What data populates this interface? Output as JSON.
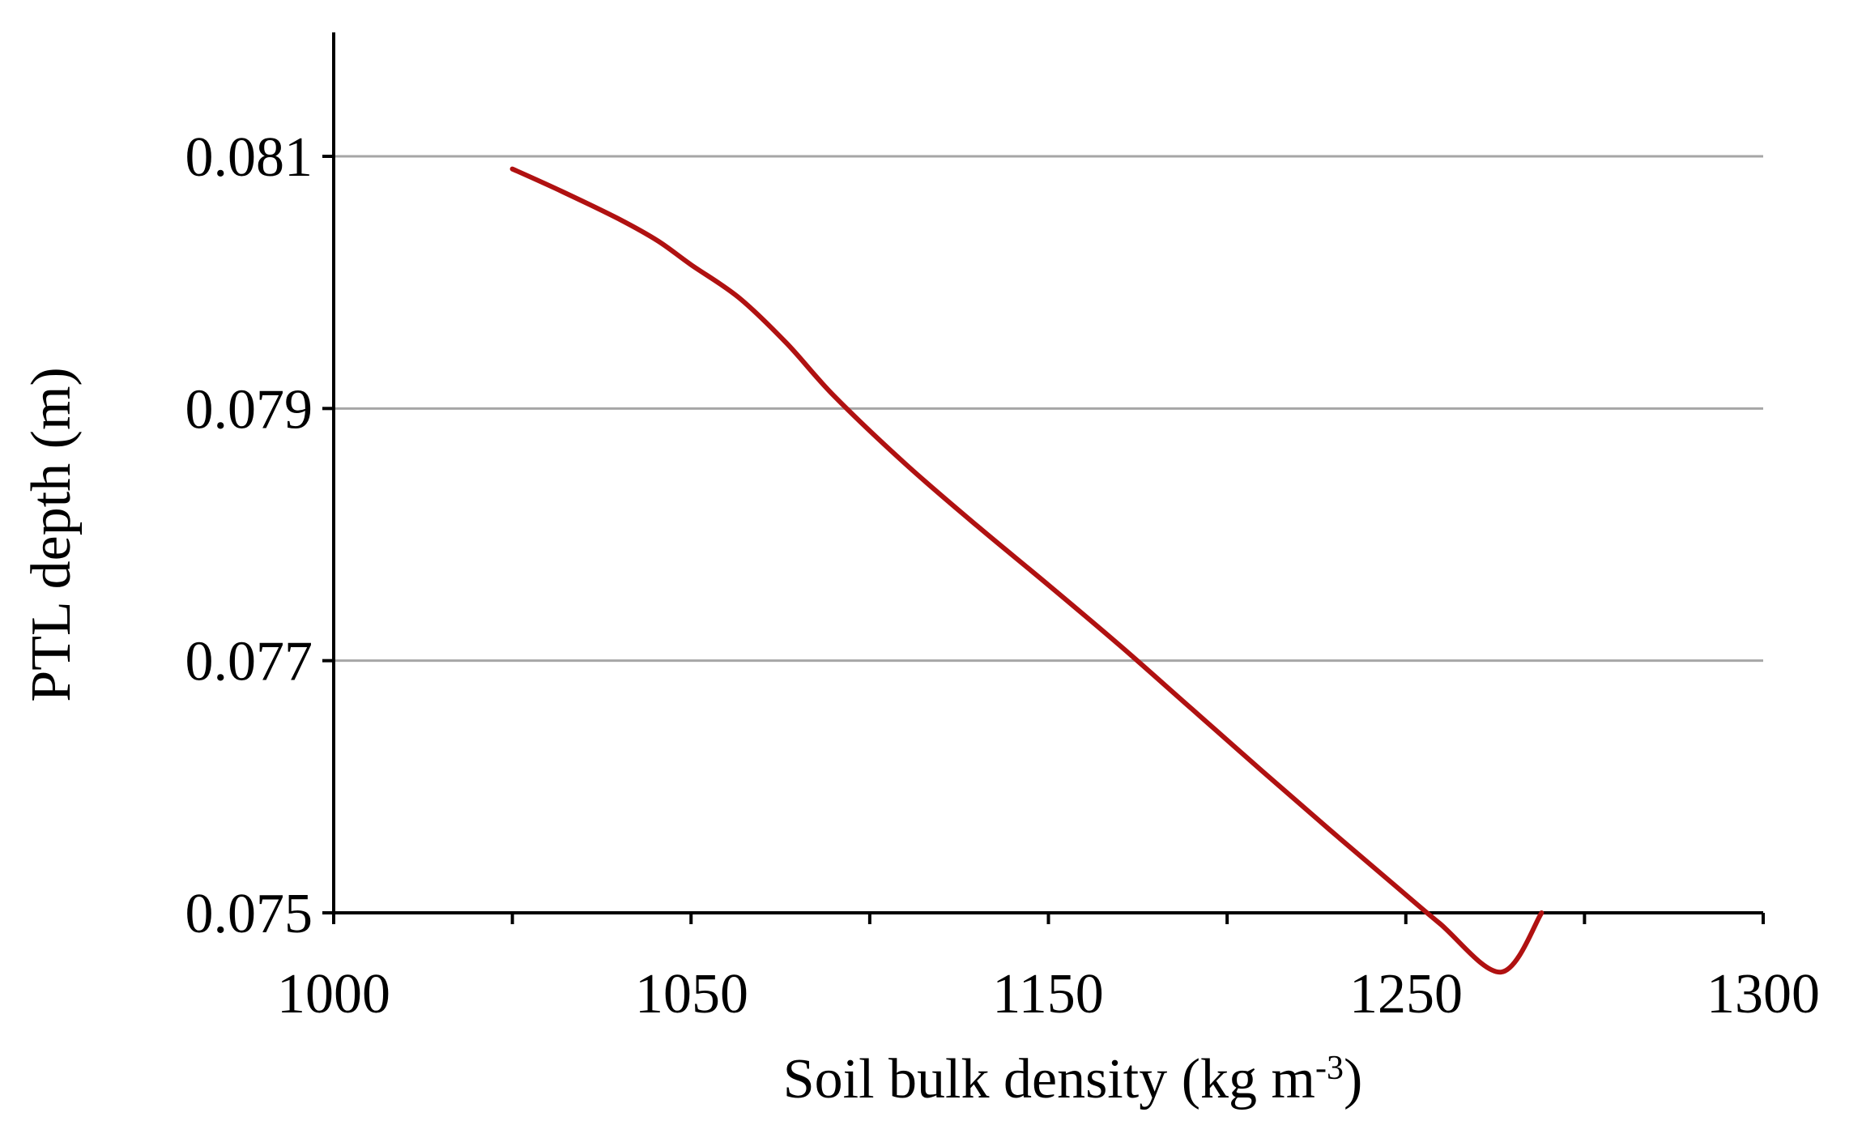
{
  "chart_data": {
    "type": "line",
    "title": "",
    "xlabel": "Soil bulk density (kg m",
    "xlabel_sup": "-3",
    "xlabel_end": ")",
    "ylabel": "PTL depth (m)",
    "xlim": [
      1000,
      1300
    ],
    "ylim": [
      0.075,
      0.082
    ],
    "x_tick_values": [
      1000,
      1050,
      1150,
      1250,
      1300
    ],
    "x_tick_labels": [
      "1000",
      "1050",
      "1150",
      "1250",
      "1300"
    ],
    "x_minor_ticks": [
      1000,
      1037.5,
      1075,
      1112.5,
      1150,
      1187.5,
      1225,
      1262.5,
      1300
    ],
    "y_tick_values": [
      0.075,
      0.077,
      0.079,
      0.081
    ],
    "y_tick_labels": [
      "0.075",
      "0.077",
      "0.079",
      "0.081"
    ],
    "grid": "horizontal",
    "legend": "none",
    "series": [
      {
        "color": "#b01111",
        "x": [
          1037.5,
          1048,
          1060,
          1068,
          1075,
          1085,
          1095,
          1105,
          1120,
          1135,
          1150,
          1165,
          1180,
          1195,
          1209,
          1222,
          1232,
          1245,
          1253.5
        ],
        "y": [
          0.0809,
          0.08072,
          0.0805,
          0.08033,
          0.08014,
          0.07988,
          0.07952,
          0.0791,
          0.07856,
          0.07807,
          0.0776,
          0.07712,
          0.07662,
          0.07612,
          0.07566,
          0.07524,
          0.07492,
          0.07453,
          0.075
        ]
      }
    ]
  }
}
